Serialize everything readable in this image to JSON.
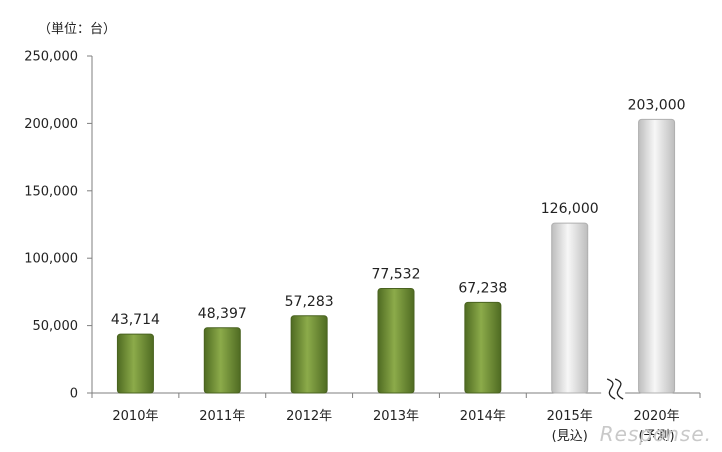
{
  "chart_data": {
    "type": "bar",
    "unit_label": "（単位：台）",
    "categories": [
      "2010年",
      "2011年",
      "2012年",
      "2013年",
      "2014年",
      "2015年",
      "2020年"
    ],
    "category_notes": [
      "",
      "",
      "",
      "",
      "",
      "(見込)",
      "(予測)"
    ],
    "values": [
      43714,
      48397,
      57283,
      77532,
      67238,
      126000,
      203000
    ],
    "value_labels": [
      "43,714",
      "48,397",
      "57,283",
      "77,532",
      "67,238",
      "126,000",
      "203,000"
    ],
    "bar_kinds": [
      "actual",
      "actual",
      "actual",
      "actual",
      "actual",
      "forecast",
      "forecast"
    ],
    "ylim": [
      0,
      250000
    ],
    "yticks": [
      0,
      50000,
      100000,
      150000,
      200000,
      250000
    ],
    "ytick_labels": [
      "0",
      "50,000",
      "100,000",
      "150,000",
      "200,000",
      "250,000"
    ],
    "title": "",
    "xlabel": "",
    "ylabel": "",
    "grid": false,
    "axis_break_between": [
      "2015年",
      "2020年"
    ],
    "colors": {
      "actual": "#77933c",
      "forecast": "#e6e6e6",
      "axis": "#7f7f7f"
    }
  },
  "watermark": "Response."
}
